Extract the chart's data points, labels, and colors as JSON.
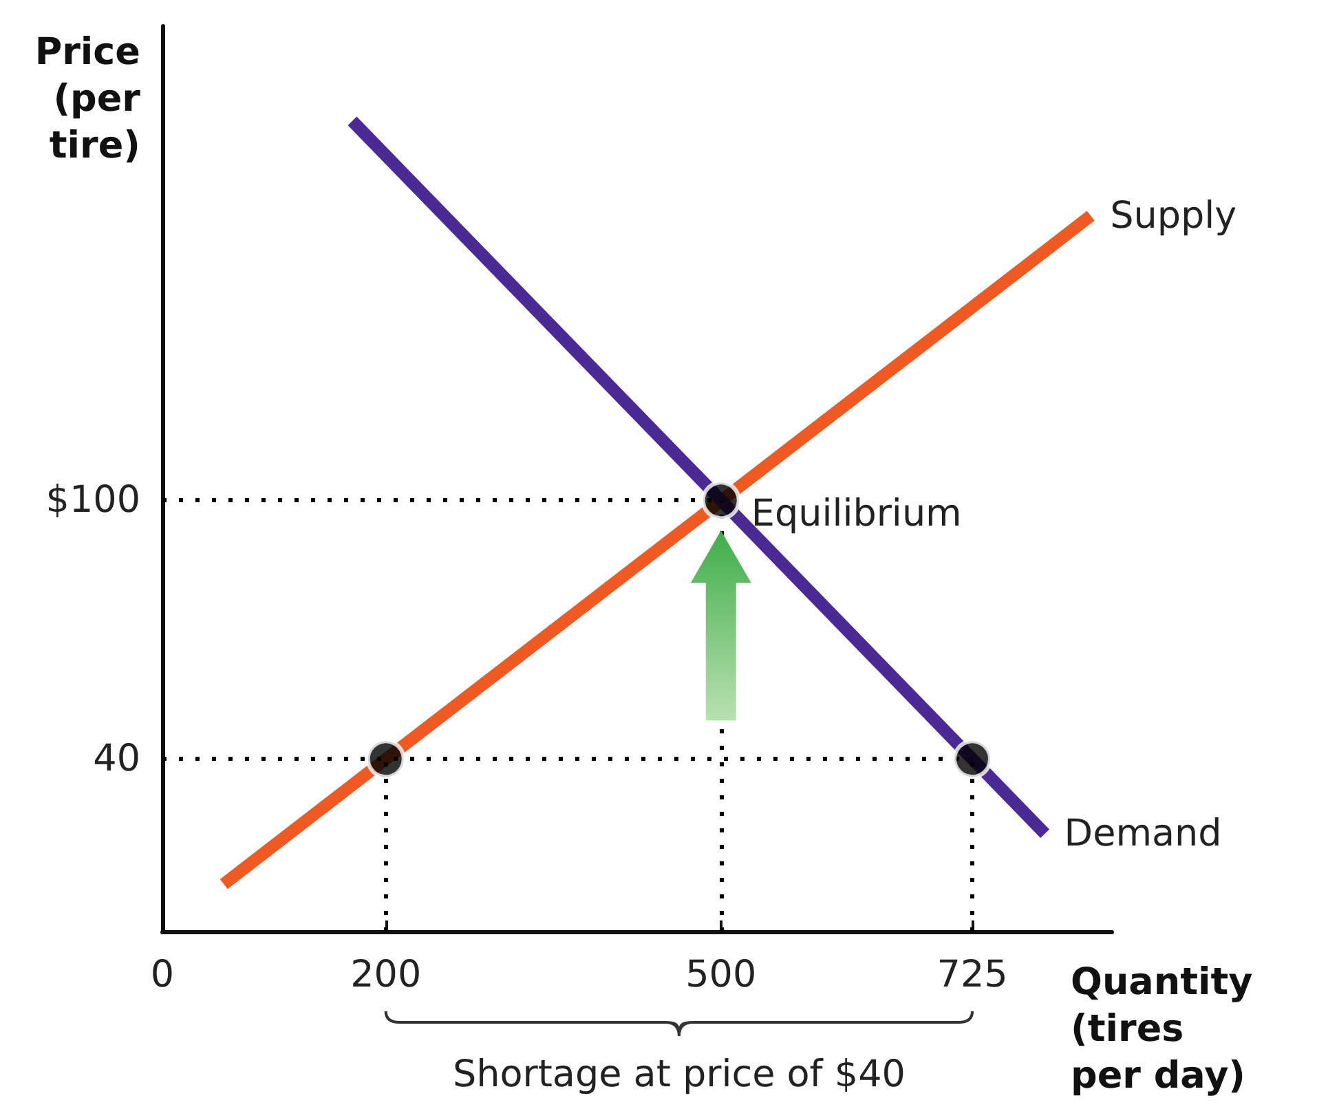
{
  "chart_data": {
    "type": "line",
    "xlabel": "Quantity (tires per day)",
    "ylabel": "Price (per tire)",
    "xlim": [
      0,
      850
    ],
    "ylim": [
      0,
      210
    ],
    "xticks": [
      0,
      200,
      500,
      725
    ],
    "yticks": [
      {
        "value": 40,
        "label": "40"
      },
      {
        "value": 100,
        "label": "$100"
      }
    ],
    "grid": false,
    "legend": false,
    "marker": "none",
    "line_style": "solid",
    "series": [
      {
        "name": "Supply",
        "color": "#f05a22",
        "x": [
          55,
          831
        ],
        "values": [
          11,
          166
        ]
      },
      {
        "name": "Demand",
        "color": "#4b2a96",
        "x": [
          170,
          790
        ],
        "values": [
          188,
          22.7
        ]
      },
      {
        "type": "scatter",
        "marker": "circle",
        "color": "#000000",
        "x": [
          200,
          500,
          725
        ],
        "values": [
          40,
          100,
          40
        ]
      }
    ],
    "ref_lines": [
      {
        "axis": "y",
        "value": 100,
        "line_style": "dotted",
        "color": "#000000"
      },
      {
        "axis": "y",
        "value": 40,
        "line_style": "dotted",
        "color": "#000000"
      },
      {
        "axis": "x",
        "value": 200,
        "line_style": "dotted",
        "color": "#000000"
      },
      {
        "axis": "x",
        "value": 500,
        "line_style": "dotted",
        "color": "#000000"
      },
      {
        "axis": "x",
        "value": 725,
        "line_style": "dotted",
        "color": "#000000"
      }
    ],
    "annotations": [
      {
        "text": "Equilibrium",
        "x": 500,
        "y": 100
      },
      "Shortage at price of $40"
    ]
  }
}
